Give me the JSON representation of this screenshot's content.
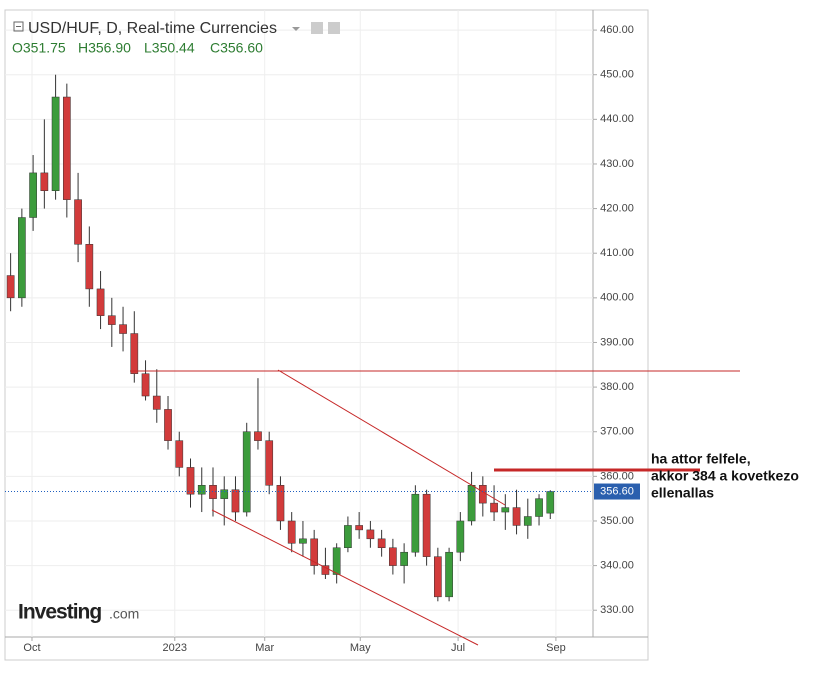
{
  "chart_data": {
    "type": "candlestick",
    "title": "USD/HUF, D, Real-time Currencies",
    "ohlc_labels": [
      "O351.75",
      "H356.90",
      "L350.44",
      "C356.60"
    ],
    "up_color": "#3c9c3c",
    "down_color": "#d23b3b",
    "ohlc": [
      [
        405,
        410,
        397,
        400
      ],
      [
        400,
        420,
        398,
        418
      ],
      [
        418,
        432,
        415,
        428
      ],
      [
        428,
        440,
        420,
        424
      ],
      [
        424,
        450,
        422,
        445
      ],
      [
        445,
        448,
        418,
        422
      ],
      [
        422,
        428,
        408,
        412
      ],
      [
        412,
        416,
        398,
        402
      ],
      [
        402,
        406,
        393,
        396
      ],
      [
        396,
        400,
        389,
        394
      ],
      [
        394,
        398,
        388,
        392
      ],
      [
        392,
        397,
        381,
        383
      ],
      [
        383,
        386,
        377,
        378
      ],
      [
        378,
        384,
        372,
        375
      ],
      [
        375,
        378,
        366,
        368
      ],
      [
        368,
        370,
        360,
        362
      ],
      [
        362,
        364,
        353,
        356
      ],
      [
        356,
        362,
        352,
        358
      ],
      [
        358,
        362,
        351,
        355
      ],
      [
        355,
        360,
        349,
        357
      ],
      [
        357,
        360,
        350,
        352
      ],
      [
        352,
        372,
        351,
        370
      ],
      [
        370,
        382,
        366,
        368
      ],
      [
        368,
        370,
        356,
        358
      ],
      [
        358,
        360,
        348,
        350
      ],
      [
        350,
        352,
        343,
        345
      ],
      [
        345,
        350,
        342,
        346
      ],
      [
        346,
        348,
        338,
        340
      ],
      [
        340,
        344,
        337,
        338
      ],
      [
        338,
        345,
        336,
        344
      ],
      [
        344,
        351,
        343,
        349
      ],
      [
        349,
        352,
        346,
        348
      ],
      [
        348,
        350,
        344,
        346
      ],
      [
        346,
        348,
        342,
        344
      ],
      [
        344,
        346,
        338,
        340
      ],
      [
        340,
        345,
        336,
        343
      ],
      [
        343,
        358,
        342,
        356
      ],
      [
        356,
        357,
        340,
        342
      ],
      [
        342,
        344,
        332,
        333
      ],
      [
        333,
        344,
        332,
        343
      ],
      [
        343,
        352,
        341,
        350
      ],
      [
        350,
        361,
        349,
        358
      ],
      [
        358,
        360,
        351,
        354
      ],
      [
        354,
        358,
        350,
        352
      ],
      [
        352,
        356,
        348,
        353
      ],
      [
        353,
        357,
        347,
        349
      ],
      [
        349,
        355,
        346,
        351
      ],
      [
        351,
        356,
        349,
        355
      ],
      [
        351.75,
        356.9,
        350.44,
        356.6
      ]
    ],
    "last_label": "356.60",
    "xlim": [
      -0.5,
      51.8
    ],
    "xticks": [
      {
        "value": 1.9,
        "label": "Oct"
      },
      {
        "value": 14.6,
        "label": "2023"
      },
      {
        "value": 22.6,
        "label": "Mar"
      },
      {
        "value": 31.1,
        "label": "May"
      },
      {
        "value": 39.8,
        "label": "Jul"
      },
      {
        "value": 48.5,
        "label": "Sep"
      }
    ],
    "ylim": [
      324,
      464.5
    ],
    "yticks": [
      {
        "value": 330,
        "label": "330.00"
      },
      {
        "value": 340,
        "label": "340.00"
      },
      {
        "value": 350,
        "label": "350.00"
      },
      {
        "value": 360,
        "label": "360.00"
      },
      {
        "value": 370,
        "label": "370.00"
      },
      {
        "value": 380,
        "label": "380.00"
      },
      {
        "value": 390,
        "label": "390.00"
      },
      {
        "value": 400,
        "label": "400.00"
      },
      {
        "value": 410,
        "label": "410.00"
      },
      {
        "value": 420,
        "label": "420.00"
      },
      {
        "value": 430,
        "label": "430.00"
      },
      {
        "value": 440,
        "label": "440.00"
      },
      {
        "value": 450,
        "label": "450.00"
      },
      {
        "value": 460,
        "label": "460.00"
      }
    ],
    "grid": true,
    "annotation": [
      " ha attor felfele,",
      "akkor 384 a kovetkezo",
      "ellenallas"
    ],
    "logo": [
      "Investing",
      ".com"
    ]
  }
}
